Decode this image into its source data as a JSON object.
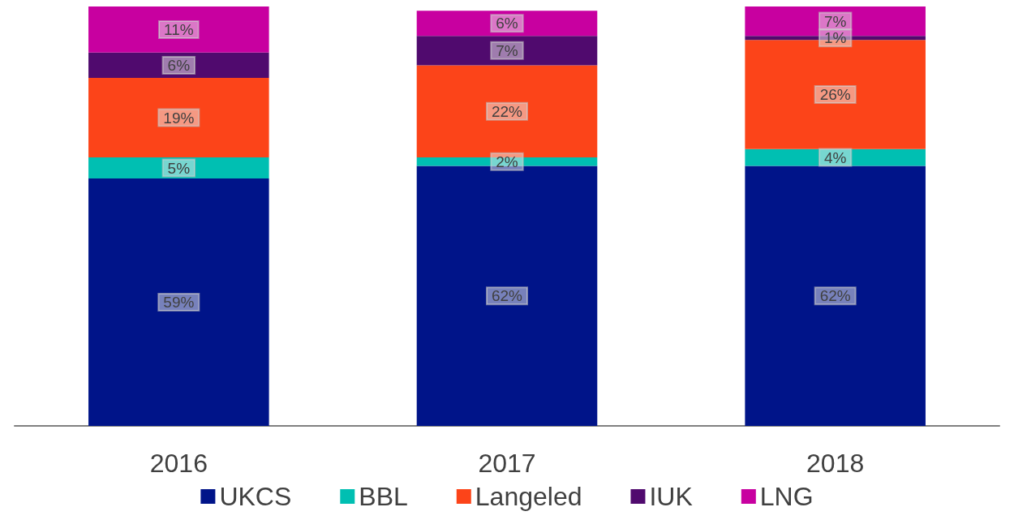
{
  "chart_data": {
    "type": "bar",
    "stacked": true,
    "categories": [
      "2016",
      "2017",
      "2018"
    ],
    "series": [
      {
        "name": "UKCS",
        "color": "#001489",
        "values": [
          59,
          62,
          62
        ],
        "value_labels": [
          "59%",
          "62%",
          "62%"
        ]
      },
      {
        "name": "BBL",
        "color": "#00bfb2",
        "values": [
          5,
          2,
          4
        ],
        "value_labels": [
          "5%",
          "2%",
          "4%"
        ]
      },
      {
        "name": "Langeled",
        "color": "#fc4419",
        "values": [
          19,
          22,
          26
        ],
        "value_labels": [
          "19%",
          "22%",
          "26%"
        ]
      },
      {
        "name": "IUK",
        "color": "#500a6e",
        "values": [
          6,
          7,
          1
        ],
        "value_labels": [
          "6%",
          "7%",
          "1%"
        ]
      },
      {
        "name": "LNG",
        "color": "#c800a0",
        "values": [
          11,
          6,
          7
        ],
        "value_labels": [
          "11%",
          "6%",
          "7%"
        ]
      }
    ],
    "legend": "bottom",
    "grid": false
  }
}
